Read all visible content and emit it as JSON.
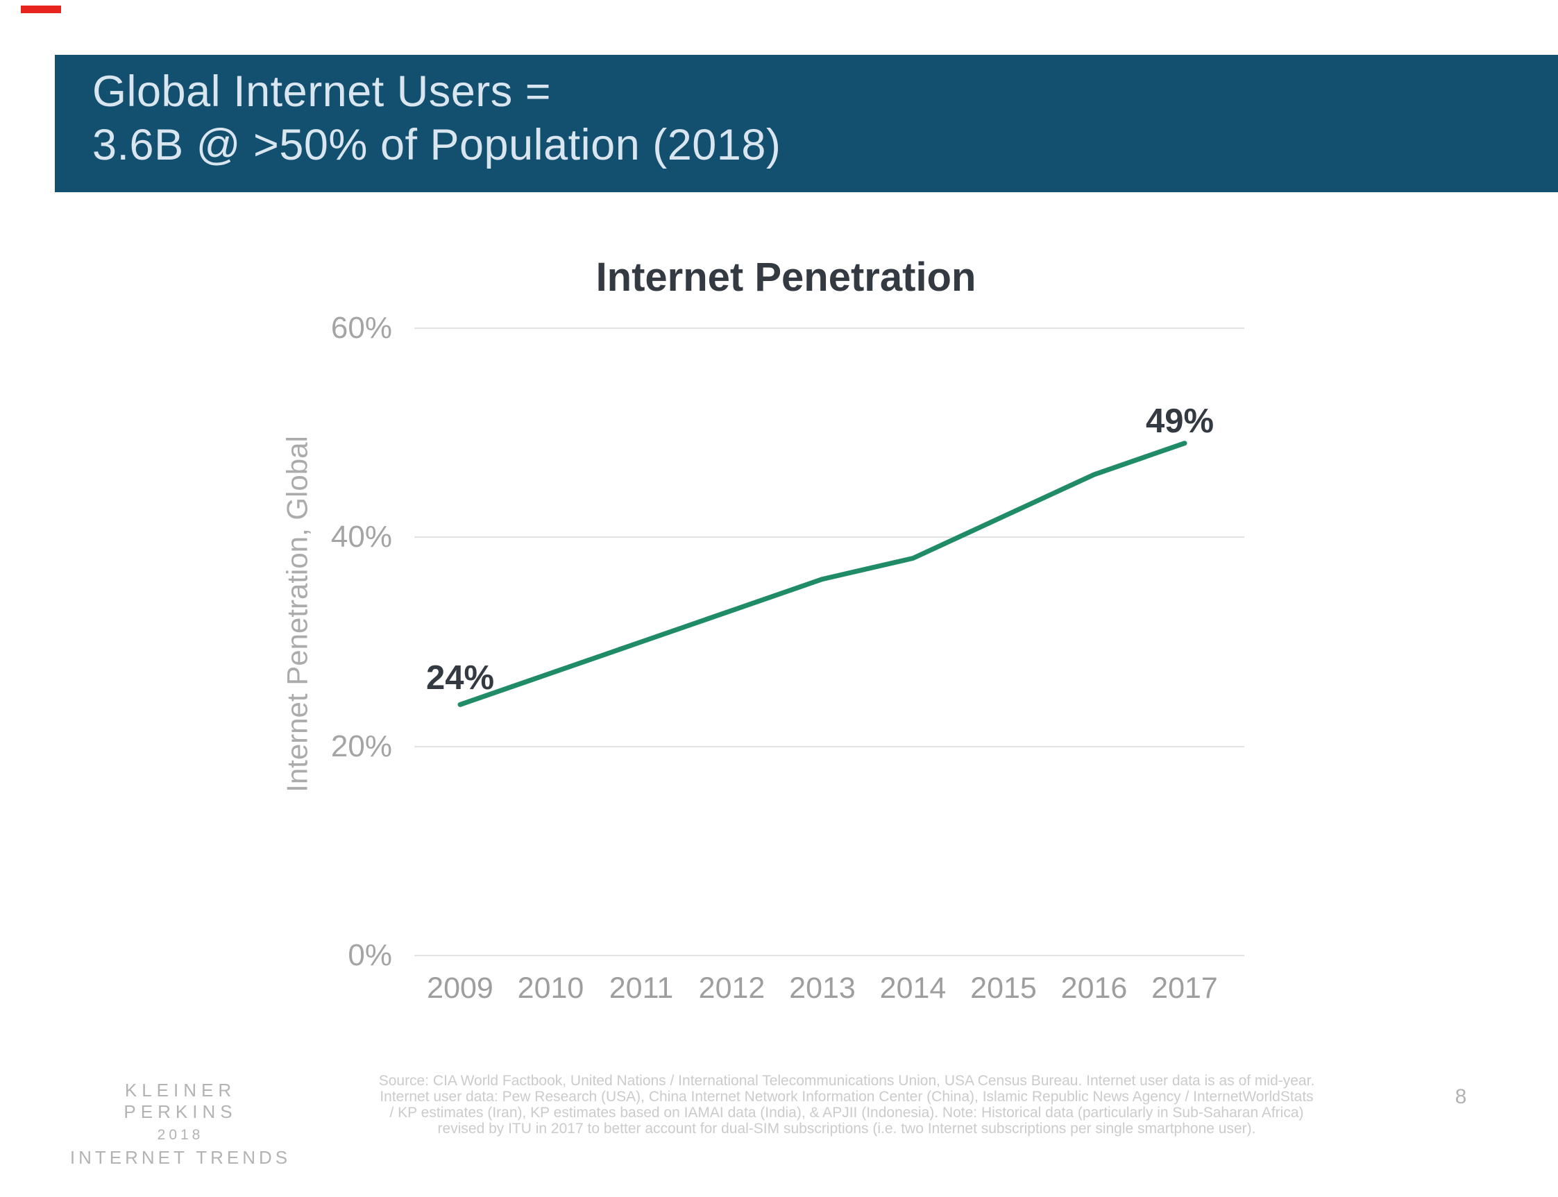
{
  "header": {
    "title_line1": "Global Internet Users =",
    "title_line2": "3.6B @ >50% of Population (2018)"
  },
  "chart_data": {
    "type": "line",
    "title": "Internet Penetration",
    "ylabel": "Internet Penetration, Global",
    "categories": [
      "2009",
      "2010",
      "2011",
      "2012",
      "2013",
      "2014",
      "2015",
      "2016",
      "2017"
    ],
    "series": [
      {
        "name": "Internet Penetration, Global",
        "values": [
          24,
          27,
          30,
          33,
          36,
          38,
          42,
          46,
          49
        ]
      }
    ],
    "ylim": [
      0,
      60
    ],
    "yticks": [
      0,
      20,
      40,
      60
    ],
    "ytick_labels": [
      "0%",
      "20%",
      "40%",
      "60%"
    ],
    "grid": "horizontal",
    "legend_position": "none",
    "line_color": "#208b67",
    "data_labels": {
      "first": "24%",
      "last": "49%"
    }
  },
  "footer": {
    "logo": {
      "line1": "KLEINER PERKINS",
      "line2": "2018",
      "line3": "INTERNET TRENDS"
    },
    "source_lines": [
      "Source: CIA World Factbook, United Nations / International Telecommunications Union, USA Census Bureau. Internet user data is as of mid-year.",
      "Internet user data: Pew Research (USA), China Internet Network Information Center (China), Islamic Republic News Agency / InternetWorldStats",
      "/ KP estimates (Iran), KP estimates based on IAMAI data (India), & APJII (Indonesia).  Note: Historical data (particularly in Sub-Saharan Africa)",
      "revised by ITU in 2017 to better account for dual-SIM subscriptions (i.e. two Internet subscriptions per single smartphone user)."
    ],
    "page_number": "8"
  },
  "colors": {
    "header_bg": "#135070",
    "header_text": "#d9e6ef",
    "trend_line": "#208b67",
    "title_text": "#333a42",
    "axis_text": "#a4a4a4",
    "gridline": "#e3e3e3",
    "footer_text": "#cbcbcb",
    "red_mark": "#e8241f"
  }
}
